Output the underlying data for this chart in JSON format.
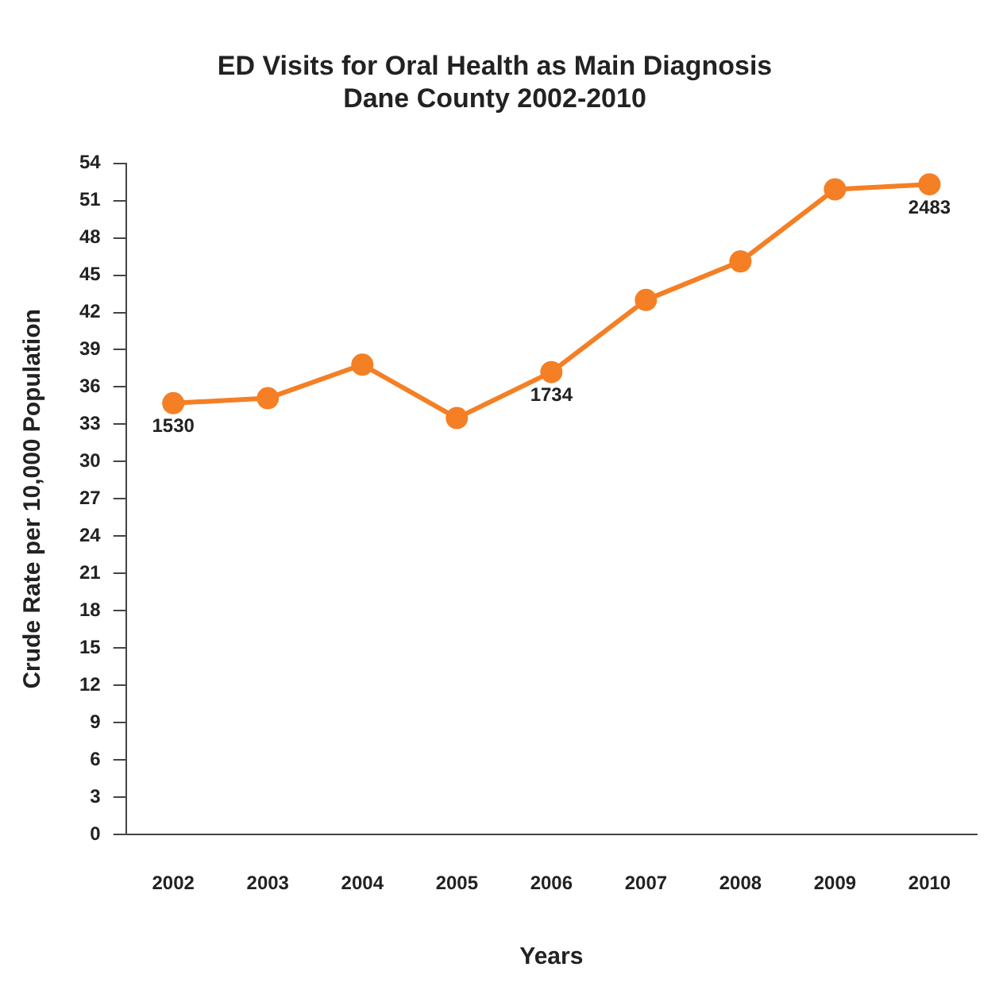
{
  "chart_data": {
    "type": "line",
    "title": "ED Visits for Oral Health as Main Diagnosis\nDane County 2002-2010",
    "xlabel": "Years",
    "ylabel": "Crude Rate per 10,000 Population",
    "categories": [
      "2002",
      "2003",
      "2004",
      "2005",
      "2006",
      "2007",
      "2008",
      "2009",
      "2010"
    ],
    "series": [
      {
        "color": "#f47f24",
        "values": [
          34.7,
          35.1,
          37.8,
          33.5,
          37.2,
          43.0,
          46.1,
          51.9,
          52.3
        ]
      }
    ],
    "ylim": [
      0,
      54
    ],
    "yticks": [
      0,
      3,
      6,
      9,
      12,
      15,
      18,
      21,
      24,
      27,
      30,
      33,
      36,
      39,
      42,
      45,
      48,
      51,
      54
    ],
    "marker": "circle",
    "line_style": "solid",
    "grid": false,
    "legend": false,
    "annotations": [
      {
        "text": "1530",
        "x": "2002",
        "y": 34.7
      },
      {
        "text": "1734",
        "x": "2006",
        "y": 37.2
      },
      {
        "text": "2483",
        "x": "2010",
        "y": 52.3
      }
    ]
  }
}
